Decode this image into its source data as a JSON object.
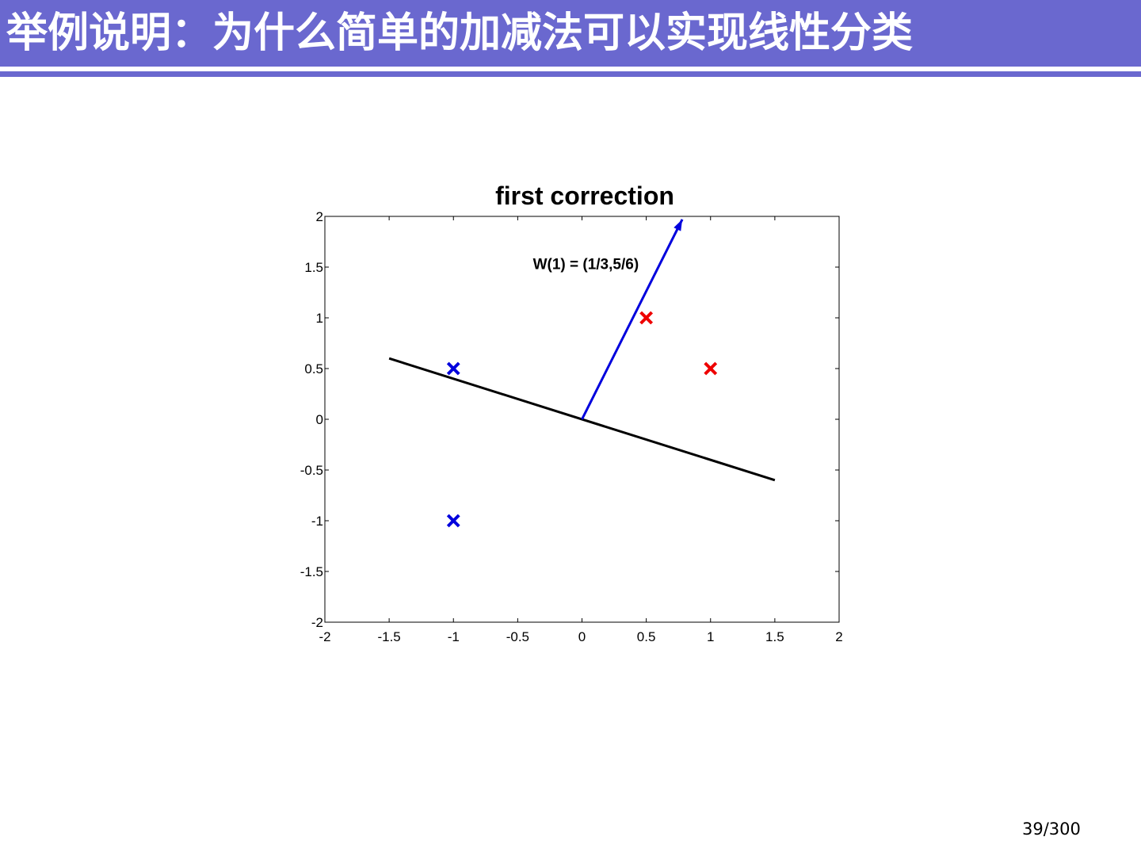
{
  "slide": {
    "title": "举例说明：为什么简单的加减法可以实现线性分类",
    "page_number": "39/300",
    "colors": {
      "title_bar": "#6a68cf",
      "title_text": "#ffffff"
    }
  },
  "chart_data": {
    "type": "scatter",
    "title": "first correction",
    "xlabel": "",
    "ylabel": "",
    "xlim": [
      -2,
      2
    ],
    "ylim": [
      -2,
      2
    ],
    "xticks": [
      -2,
      -1.5,
      -1,
      -0.5,
      0,
      0.5,
      1,
      1.5,
      2
    ],
    "yticks": [
      -2,
      -1.5,
      -1,
      -0.5,
      0,
      0.5,
      1,
      1.5,
      2
    ],
    "xtick_labels": [
      "-2",
      "-1.5",
      "-1",
      "-0.5",
      "0",
      "0.5",
      "1",
      "1.5",
      "2"
    ],
    "ytick_labels": [
      "-2",
      "-1.5",
      "-1",
      "-0.5",
      "0",
      "0.5",
      "1",
      "1.5",
      "2"
    ],
    "grid": false,
    "series": [
      {
        "marker": "x",
        "color": "#0000dd",
        "points": [
          [
            -1,
            0.5
          ],
          [
            -1,
            -1
          ]
        ]
      },
      {
        "marker": "x",
        "color": "#ee0000",
        "points": [
          [
            0.5,
            1
          ],
          [
            1,
            0.5
          ]
        ]
      }
    ],
    "boundary_line": {
      "color": "#000000",
      "points": [
        [
          -1.5,
          0.6
        ],
        [
          1.5,
          -0.6
        ]
      ]
    },
    "weight_vector": {
      "color": "#0000dd",
      "from": [
        0,
        0
      ],
      "to": [
        0.78,
        1.97
      ]
    },
    "annotation": {
      "text": "W(1) = (1/3,5/6)",
      "x": 0.03,
      "y": 1.48
    }
  }
}
